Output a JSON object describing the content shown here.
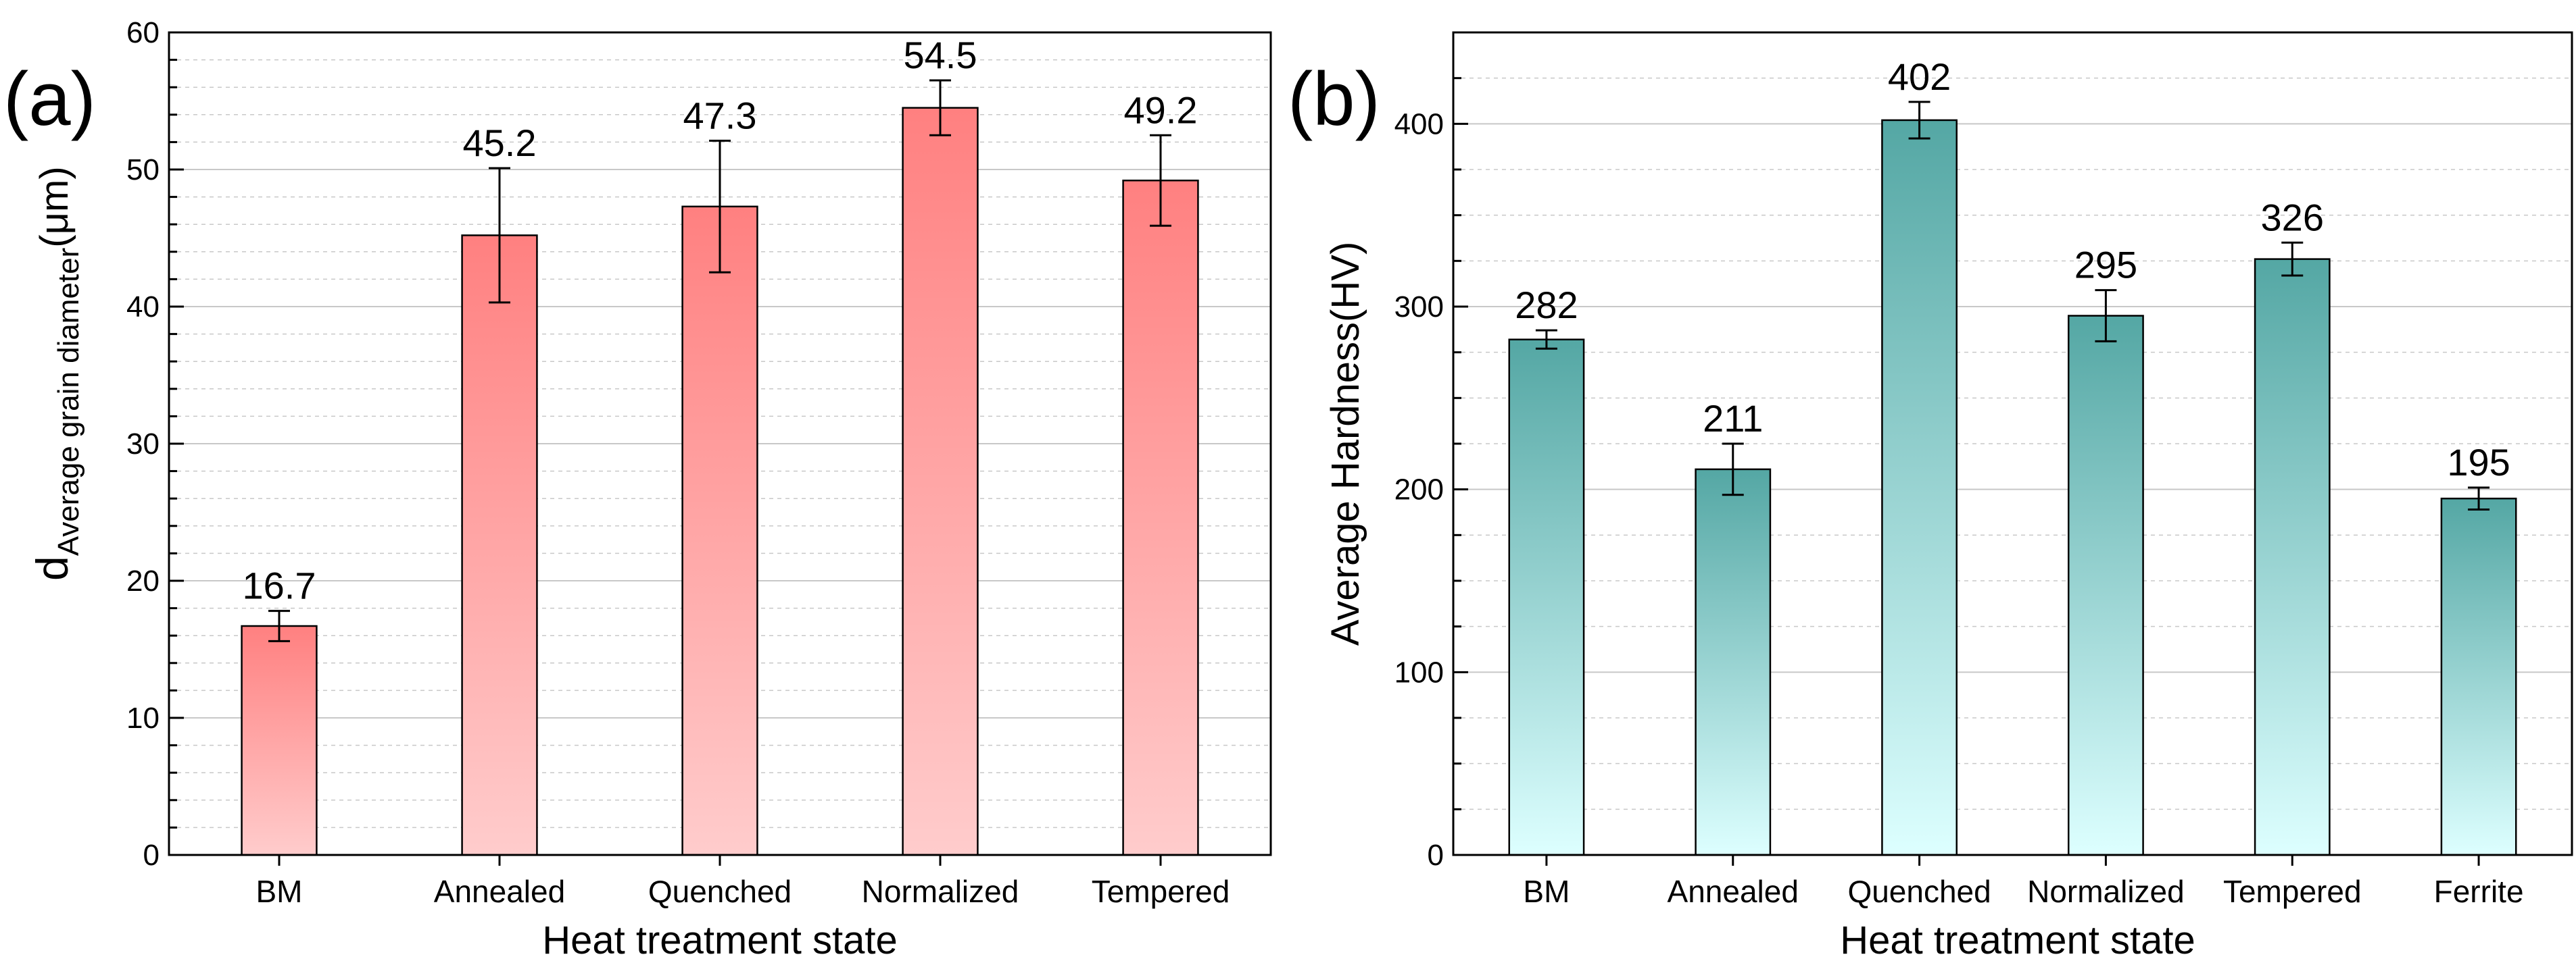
{
  "colors": {
    "bar_a_top": "#FF8080",
    "bar_a_bottom": "#FFCCCC",
    "bar_b_top": "#54A7A4",
    "bar_b_bottom": "#DDFFFF",
    "grid": "#C8C8C8",
    "axis": "#000000"
  },
  "chart_data": [
    {
      "type": "bar",
      "panel": "(a)",
      "title": "",
      "xlabel": "Heat treatment state",
      "ylabel_main": "d",
      "ylabel_sub": "Average grain diameter",
      "ylabel_unit": "(μm)",
      "categories": [
        "BM",
        "Annealed",
        "Quenched",
        "Normalized",
        "Tempered"
      ],
      "values": [
        16.7,
        45.2,
        47.3,
        54.5,
        49.2
      ],
      "errors": [
        1.1,
        4.9,
        4.8,
        2.0,
        3.3
      ],
      "value_labels": [
        "16.7",
        "45.2",
        "47.3",
        "54.5",
        "49.2"
      ],
      "ylim": [
        0,
        60
      ],
      "yticks": [
        0,
        10,
        20,
        30,
        40,
        50,
        60
      ],
      "ytick_labels": [
        "0",
        "10",
        "20",
        "30",
        "40",
        "50",
        "60"
      ],
      "grid": true
    },
    {
      "type": "bar",
      "panel": "(b)",
      "title": "",
      "xlabel": "Heat treatment state",
      "ylabel": "Average Hardness(HV)",
      "categories": [
        "BM",
        "Annealed",
        "Quenched",
        "Normalized",
        "Tempered",
        "Ferrite"
      ],
      "values": [
        282,
        211,
        402,
        295,
        326,
        195
      ],
      "errors": [
        5,
        14,
        10,
        14,
        9,
        6
      ],
      "value_labels": [
        "282",
        "211",
        "402",
        "295",
        "326",
        "195"
      ],
      "ylim": [
        0,
        450
      ],
      "yticks": [
        0,
        100,
        200,
        300,
        400
      ],
      "ytick_labels": [
        "0",
        "100",
        "200",
        "300",
        "400"
      ],
      "grid": true
    }
  ]
}
